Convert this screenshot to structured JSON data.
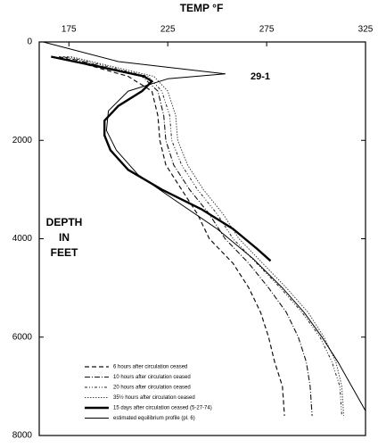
{
  "chart_data": {
    "type": "line",
    "title": "TEMP °F",
    "annotation": "29-1",
    "y_label": [
      "DEPTH",
      "IN",
      "FEET"
    ],
    "xlim": [
      160,
      325
    ],
    "xticks": [
      175,
      225,
      275,
      325
    ],
    "ylim": [
      0,
      8000
    ],
    "yticks": [
      0,
      2000,
      4000,
      6000,
      8000
    ],
    "y_inverted": true,
    "x_axis_position": "top",
    "series": [
      {
        "name": "6 hours after circulation ceased",
        "color": "#111",
        "width": 1.2,
        "dash": "5 3",
        "x": [
          170,
          205,
          217,
          220,
          221,
          224,
          232,
          240,
          246,
          258,
          266,
          272,
          276,
          279,
          283,
          284
        ],
        "y": [
          300,
          700,
          1000,
          1500,
          2000,
          2500,
          3000,
          3500,
          4000,
          4500,
          5000,
          5500,
          6000,
          6500,
          7000,
          7600
        ]
      },
      {
        "name": "10 hours after circulation ceased",
        "color": "#111",
        "width": 1.1,
        "dash": "6 2 1 2",
        "x": [
          172,
          212,
          220,
          223,
          224,
          228,
          236,
          246,
          254,
          266,
          276,
          285,
          291,
          295,
          297,
          298
        ],
        "y": [
          300,
          700,
          1000,
          1500,
          2000,
          2500,
          3000,
          3500,
          4000,
          4500,
          5000,
          5500,
          6000,
          6500,
          7000,
          7600
        ]
      },
      {
        "name": "20 hours after circulation ceased",
        "color": "#222",
        "width": 1,
        "dash": "3 2 1 2 1 2",
        "x": [
          174,
          215,
          222,
          226,
          227,
          232,
          240,
          250,
          258,
          270,
          282,
          293,
          302,
          308,
          312,
          313
        ],
        "y": [
          300,
          700,
          1000,
          1500,
          2000,
          2500,
          3000,
          3500,
          4000,
          4500,
          5000,
          5500,
          6000,
          6500,
          7000,
          7600
        ]
      },
      {
        "name": "35½ hours after circulation ceased",
        "color": "#444",
        "width": 1,
        "dash": "1.5 1.5",
        "x": [
          176,
          218,
          225,
          229,
          230,
          235,
          243,
          253,
          261,
          273,
          285,
          296,
          304,
          310,
          313,
          314
        ],
        "y": [
          300,
          700,
          1000,
          1500,
          2000,
          2500,
          3000,
          3500,
          4000,
          4500,
          5000,
          5500,
          6000,
          6500,
          7000,
          7600
        ]
      },
      {
        "name": "15 days after circulation ceased (5-27-74)",
        "color": "#000",
        "width": 2.4,
        "dash": "none",
        "x": [
          166,
          190,
          213,
          217,
          212,
          200,
          193,
          193,
          196,
          205,
          222,
          242,
          258,
          270,
          277
        ],
        "y": [
          300,
          500,
          700,
          800,
          1000,
          1300,
          1600,
          1900,
          2200,
          2600,
          3000,
          3400,
          3800,
          4200,
          4450
        ]
      },
      {
        "name": "estimated equilibrium profile (pl. 6)",
        "color": "#000",
        "width": 1,
        "dash": "none",
        "x": [
          162,
          200,
          254,
          225,
          205,
          195,
          194,
          199,
          210,
          228,
          250,
          268,
          283,
          294,
          303,
          311,
          318,
          325
        ],
        "y": [
          0,
          400,
          650,
          750,
          1000,
          1400,
          1800,
          2200,
          2700,
          3200,
          3800,
          4400,
          5000,
          5500,
          6000,
          6500,
          7000,
          7500
        ]
      }
    ]
  }
}
